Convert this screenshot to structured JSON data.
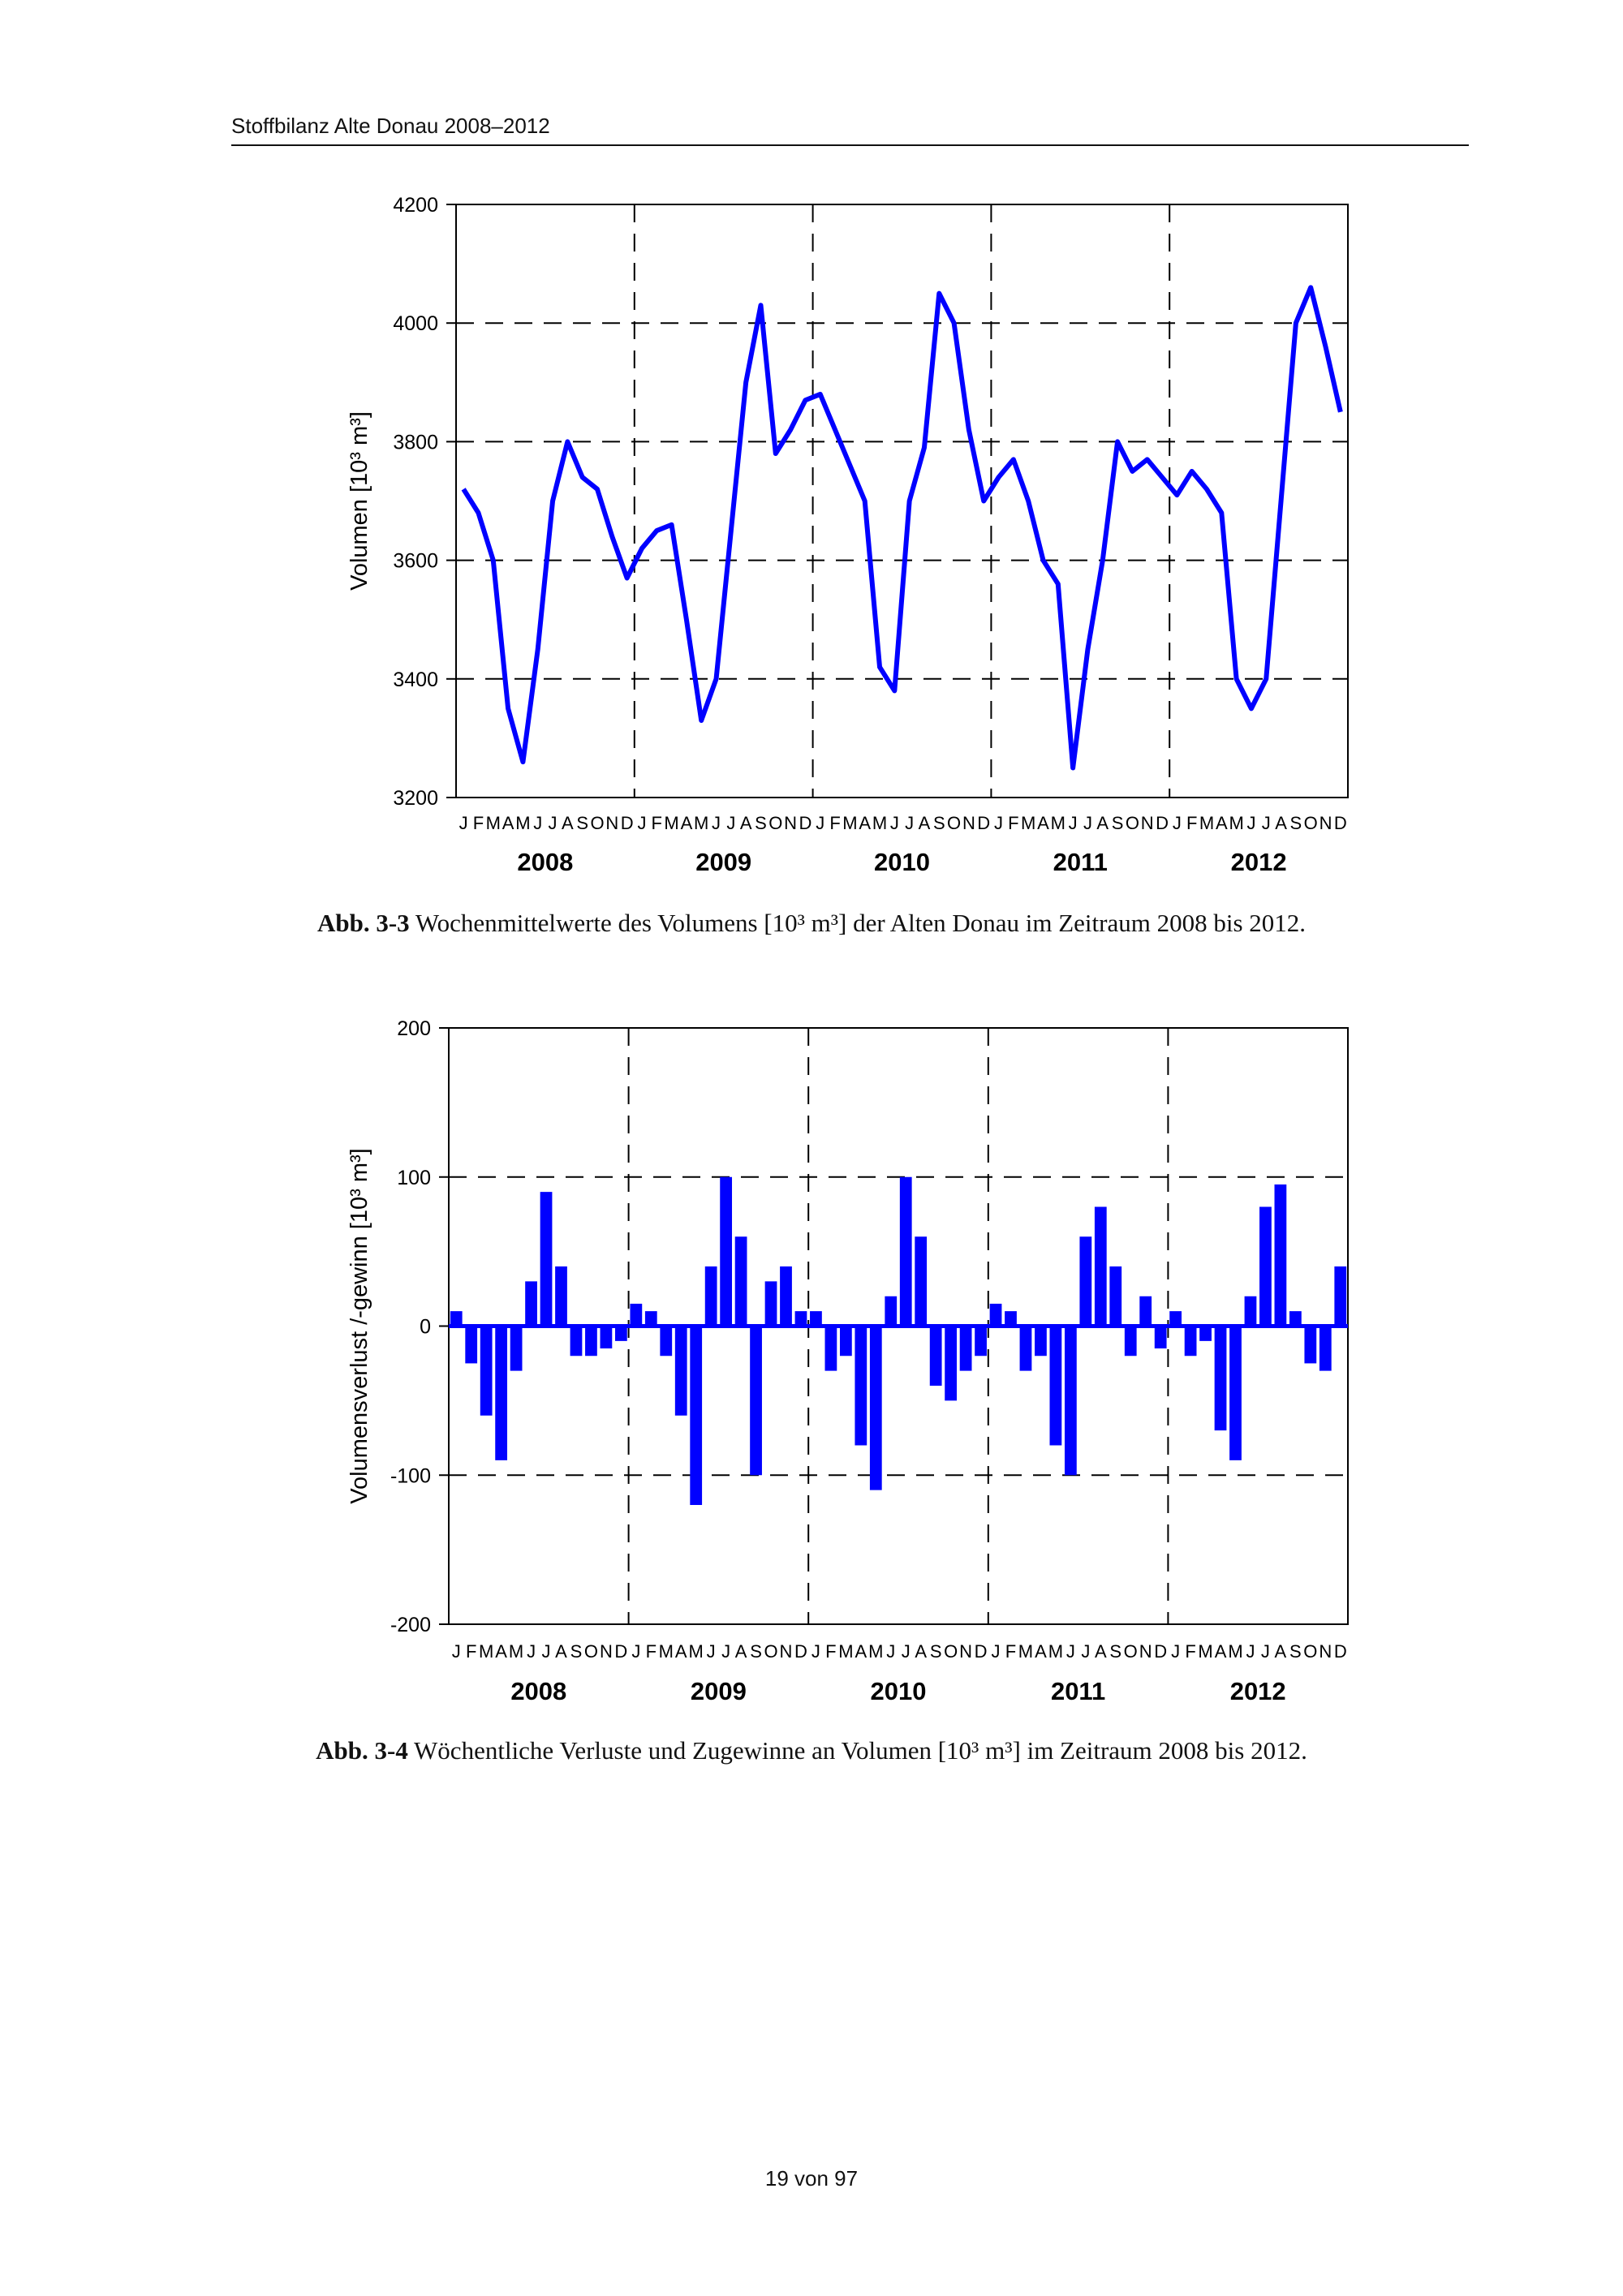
{
  "header": "Stoffbilanz Alte Donau 2008–2012",
  "page_number": "19 von 97",
  "chart_data": [
    {
      "type": "line",
      "y_label": "Volumen [10³ m³]",
      "caption_label": "Abb. 3-3",
      "caption": "Wochenmittelwerte des Volumens [10³ m³] der Alten Donau im Zeitraum 2008 bis 2012.",
      "categories": [
        "J",
        "F",
        "M",
        "A",
        "M",
        "J",
        "J",
        "A",
        "S",
        "O",
        "N",
        "D",
        "J",
        "F",
        "M",
        "A",
        "M",
        "J",
        "J",
        "A",
        "S",
        "O",
        "N",
        "D",
        "J",
        "F",
        "M",
        "A",
        "M",
        "J",
        "J",
        "A",
        "S",
        "O",
        "N",
        "D",
        "J",
        "F",
        "M",
        "A",
        "M",
        "J",
        "J",
        "A",
        "S",
        "O",
        "N",
        "D",
        "J",
        "F",
        "M",
        "A",
        "M",
        "J",
        "J",
        "A",
        "S",
        "O",
        "N",
        "D"
      ],
      "years": [
        "2008",
        "2009",
        "2010",
        "2011",
        "2012"
      ],
      "color": "#0000ff",
      "values": [
        3720,
        3680,
        3600,
        3350,
        3260,
        3450,
        3700,
        3800,
        3740,
        3720,
        3640,
        3570,
        3620,
        3650,
        3660,
        3500,
        3330,
        3400,
        3650,
        3900,
        4030,
        3780,
        3820,
        3870,
        3880,
        3820,
        3760,
        3700,
        3420,
        3380,
        3700,
        3790,
        4050,
        4000,
        3820,
        3700,
        3740,
        3770,
        3700,
        3600,
        3560,
        3250,
        3450,
        3600,
        3800,
        3750,
        3770,
        3740,
        3710,
        3750,
        3720,
        3680,
        3400,
        3350,
        3400,
        3700,
        4000,
        4060,
        3960,
        3850
      ],
      "ylim": [
        3200,
        4200
      ],
      "yticks": [
        3200,
        3400,
        3600,
        3800,
        4000,
        4200
      ],
      "grid": true
    },
    {
      "type": "bar",
      "y_label": "Volumensverlust /-gewinn [10³ m³]",
      "caption_label": "Abb. 3-4",
      "caption": "Wöchentliche Verluste und Zugewinne an Volumen [10³ m³] im Zeitraum 2008 bis 2012.",
      "categories": [
        "J",
        "F",
        "M",
        "A",
        "M",
        "J",
        "J",
        "A",
        "S",
        "O",
        "N",
        "D",
        "J",
        "F",
        "M",
        "A",
        "M",
        "J",
        "J",
        "A",
        "S",
        "O",
        "N",
        "D",
        "J",
        "F",
        "M",
        "A",
        "M",
        "J",
        "J",
        "A",
        "S",
        "O",
        "N",
        "D",
        "J",
        "F",
        "M",
        "A",
        "M",
        "J",
        "J",
        "A",
        "S",
        "O",
        "N",
        "D",
        "J",
        "F",
        "M",
        "A",
        "M",
        "J",
        "J",
        "A",
        "S",
        "O",
        "N",
        "D"
      ],
      "years": [
        "2008",
        "2009",
        "2010",
        "2011",
        "2012"
      ],
      "color": "#0000ff",
      "values": [
        10,
        -25,
        -60,
        -90,
        -30,
        30,
        90,
        40,
        -20,
        -20,
        -15,
        -10,
        15,
        10,
        -20,
        -60,
        -120,
        40,
        100,
        60,
        -100,
        30,
        40,
        10,
        10,
        -30,
        -20,
        -80,
        -110,
        20,
        100,
        60,
        -40,
        -50,
        -30,
        -20,
        15,
        10,
        -30,
        -20,
        -80,
        -100,
        60,
        80,
        40,
        -20,
        20,
        -15,
        10,
        -20,
        -10,
        -70,
        -90,
        20,
        80,
        95,
        10,
        -25,
        -30,
        40
      ],
      "ylim": [
        -200,
        200
      ],
      "yticks": [
        -200,
        -100,
        0,
        100,
        200
      ],
      "grid": true
    }
  ]
}
